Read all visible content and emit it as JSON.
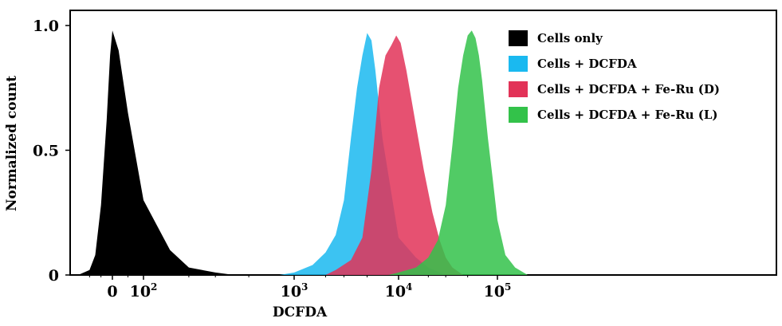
{
  "chart_data": {
    "type": "area",
    "title": "",
    "xlabel": "DCFDA",
    "ylabel": "Normalized count",
    "xscale": "log",
    "ylim": [
      0,
      1.0
    ],
    "x_ticks": [
      {
        "base": "0",
        "exp": ""
      },
      {
        "base": "10",
        "exp": "2"
      },
      {
        "base": "10",
        "exp": "3"
      },
      {
        "base": "10",
        "exp": "4"
      },
      {
        "base": "10",
        "exp": "5"
      }
    ],
    "y_ticks": [
      "1.0",
      "0.5",
      "0"
    ],
    "legend_position": "top-right",
    "series": [
      {
        "name": "Cells only",
        "color": "#000000",
        "opacity": 1.0,
        "x": [
          -300,
          -200,
          -150,
          -100,
          -50,
          -20,
          0,
          20,
          50,
          100,
          150,
          200,
          300,
          400
        ],
        "y": [
          0.0,
          0.02,
          0.08,
          0.28,
          0.62,
          0.88,
          0.98,
          0.9,
          0.65,
          0.3,
          0.1,
          0.03,
          0.01,
          0.0
        ]
      },
      {
        "name": "Cells + DCFDA",
        "color": "#1ab9f0",
        "opacity": 0.85,
        "x": [
          800,
          1000,
          1500,
          2000,
          2500,
          3000,
          3500,
          4000,
          4500,
          5000,
          5500,
          6000,
          7000,
          8000,
          10000,
          15000,
          20000,
          30000
        ],
        "y": [
          0.0,
          0.01,
          0.04,
          0.09,
          0.16,
          0.3,
          0.55,
          0.75,
          0.88,
          0.97,
          0.94,
          0.82,
          0.55,
          0.4,
          0.15,
          0.07,
          0.03,
          0.0
        ]
      },
      {
        "name": "Cells + DCFDA + Fe-Ru (D)",
        "color": "#e23358",
        "opacity": 0.85,
        "x": [
          2000,
          2500,
          3500,
          4500,
          5500,
          6500,
          7500,
          8500,
          9500,
          10500,
          12000,
          15000,
          18000,
          22000,
          26000,
          30000,
          35000,
          45000
        ],
        "y": [
          0.0,
          0.02,
          0.06,
          0.15,
          0.42,
          0.75,
          0.88,
          0.92,
          0.96,
          0.93,
          0.82,
          0.6,
          0.42,
          0.25,
          0.14,
          0.07,
          0.03,
          0.0
        ]
      },
      {
        "name": "Cells + DCFDA + Fe-Ru (L)",
        "color": "#33c24a",
        "opacity": 0.85,
        "x": [
          8000,
          10000,
          15000,
          20000,
          25000,
          30000,
          35000,
          40000,
          45000,
          50000,
          55000,
          60000,
          65000,
          70000,
          80000,
          90000,
          100000,
          120000,
          150000,
          200000
        ],
        "y": [
          0.0,
          0.01,
          0.03,
          0.07,
          0.14,
          0.28,
          0.52,
          0.75,
          0.88,
          0.96,
          0.98,
          0.95,
          0.88,
          0.78,
          0.55,
          0.38,
          0.22,
          0.08,
          0.03,
          0.0
        ]
      }
    ]
  }
}
